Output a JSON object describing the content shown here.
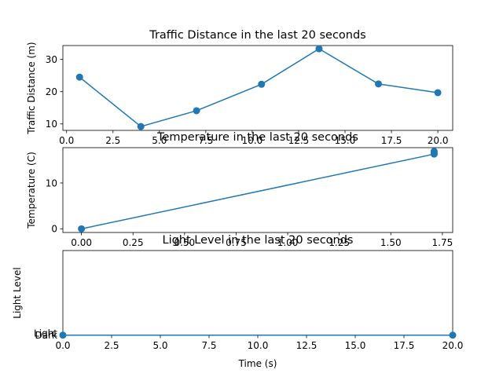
{
  "colors": {
    "series": "#1f77b4",
    "axes": "#000000",
    "background": "#ffffff"
  },
  "chart_data": [
    {
      "type": "line",
      "title": "Traffic Distance in the last 20 seconds",
      "xlabel": "",
      "ylabel": "Traffic Distance (m)",
      "xlim": [
        -0.2,
        20.8
      ],
      "ylim": [
        8,
        34.3
      ],
      "xticks": [
        0.0,
        2.5,
        5.0,
        7.5,
        10.0,
        12.5,
        15.0,
        17.5,
        20.0
      ],
      "xtick_labels": [
        "0.0",
        "2.5",
        "5.0",
        "7.5",
        "10.0",
        "12.5",
        "15.0",
        "17.5",
        "20.0"
      ],
      "yticks": [
        10,
        20,
        30
      ],
      "ytick_labels": [
        "10",
        "20",
        "30"
      ],
      "markers": true,
      "grid": false,
      "series": [
        {
          "x": [
            0.7,
            4.0,
            7.0,
            10.5,
            13.6,
            16.8,
            20.0
          ],
          "y": [
            24.5,
            9.2,
            14.1,
            22.3,
            33.3,
            22.4,
            19.7
          ]
        }
      ]
    },
    {
      "type": "line",
      "title": "Temperature in the last 20 seconds",
      "xlabel": "",
      "ylabel": "Temperature (C)",
      "xlim": [
        -0.09,
        1.8
      ],
      "ylim": [
        -0.8,
        17.7
      ],
      "xticks": [
        0.0,
        0.25,
        0.5,
        0.75,
        1.0,
        1.25,
        1.5,
        1.75
      ],
      "xtick_labels": [
        "0.00",
        "0.25",
        "0.50",
        "0.75",
        "1.00",
        "1.25",
        "1.50",
        "1.75"
      ],
      "yticks": [
        0,
        10
      ],
      "ytick_labels": [
        "0",
        "10"
      ],
      "markers": true,
      "grid": false,
      "series": [
        {
          "x": [
            0.0,
            1.71,
            1.71,
            1.71
          ],
          "y": [
            0.0,
            16.3,
            16.6,
            16.9
          ]
        }
      ]
    },
    {
      "type": "line",
      "title": "Light Level in the last 20 seconds",
      "xlabel": "Time (s)",
      "ylabel": "Light Level",
      "xlim": [
        0,
        20
      ],
      "ylim": [
        -0.06,
        21.9
      ],
      "xticks": [
        0.0,
        2.5,
        5.0,
        7.5,
        10.0,
        12.5,
        15.0,
        17.5,
        20.0
      ],
      "xtick_labels": [
        "0.0",
        "2.5",
        "5.0",
        "7.5",
        "10.0",
        "12.5",
        "15.0",
        "17.5",
        "20.0"
      ],
      "yticks": [
        0,
        0.5
      ],
      "ytick_labels": [
        "Dark",
        "Light"
      ],
      "markers": true,
      "grid": false,
      "series": [
        {
          "x": [
            0.0,
            20.0
          ],
          "y": [
            0.0,
            0.0
          ]
        }
      ]
    }
  ]
}
